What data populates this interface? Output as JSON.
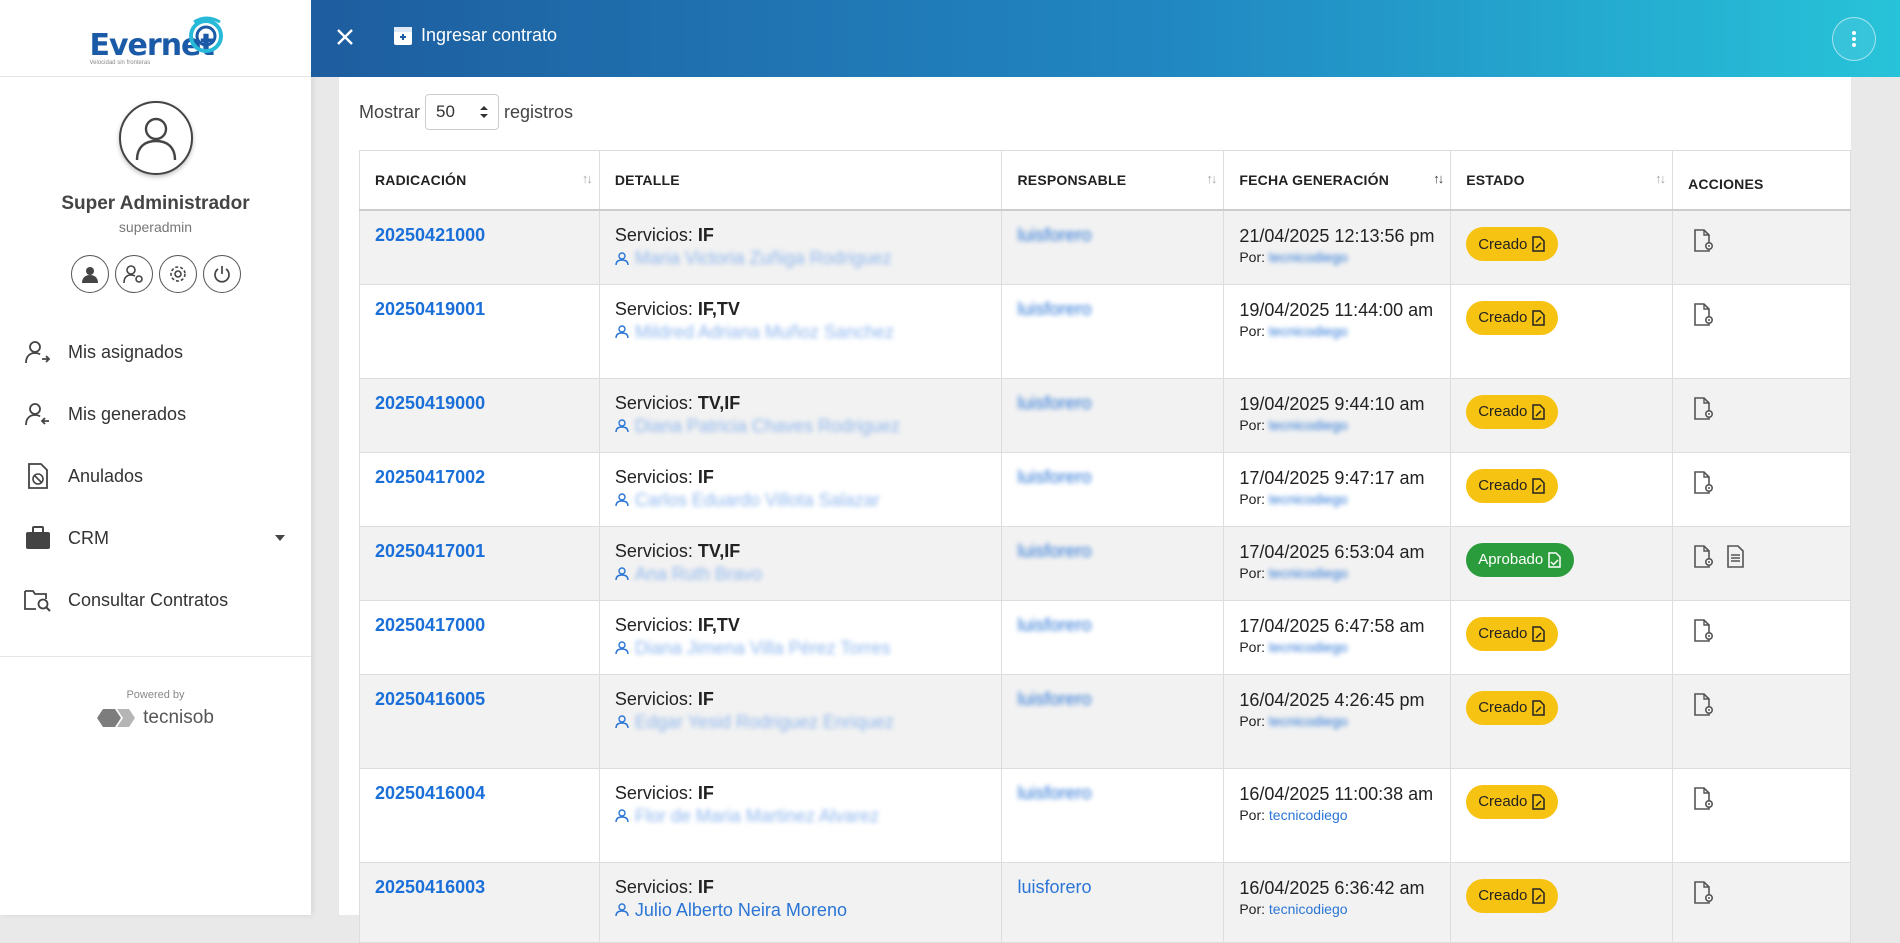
{
  "sidebar": {
    "logo_text": "Evernet",
    "logo_tagline": "Velocidad sin fronteras",
    "user": {
      "name": "Super Administrador",
      "login": "superadmin"
    },
    "profile_actions": [
      "profile-icon",
      "user-settings-icon",
      "gear-icon",
      "power-icon"
    ],
    "menu": [
      {
        "label": "Mis asignados",
        "icon": "user-assigned-icon"
      },
      {
        "label": "Mis generados",
        "icon": "user-generated-icon"
      },
      {
        "label": "Anulados",
        "icon": "cancelled-document-icon"
      },
      {
        "label": "CRM",
        "icon": "briefcase-icon",
        "has_caret": true
      },
      {
        "label": "Consultar Contratos",
        "icon": "search-folder-icon"
      }
    ],
    "powered": {
      "label": "Powered by",
      "name_a": "tecni",
      "name_b": "sob"
    }
  },
  "topbar": {
    "title": "Ingresar contrato"
  },
  "table_controls": {
    "show_label": "Mostrar",
    "page_size": "50",
    "records_label": "registros"
  },
  "table": {
    "columns": [
      "RADICACIÓN",
      "DETALLE",
      "RESPONSABLE",
      "FECHA GENERACIÓN",
      "ESTADO",
      "ACCIONES"
    ],
    "services_label": "Servicios: ",
    "by_label": "Por: ",
    "rows": [
      {
        "radicacion": "20250421000",
        "servicios": "IF",
        "cliente": "Maria Victoria Zuñiga Rodriguez",
        "responsable": "luisforero",
        "fecha": "21/04/2025 12:13:56 pm",
        "por": "tecnicodiego",
        "estado": "Creado",
        "acciones": 1
      },
      {
        "radicacion": "20250419001",
        "servicios": "IF,TV",
        "cliente": "Mildred Adriana Muñoz Sanchez",
        "responsable": "luisforero",
        "fecha": "19/04/2025 11:44:00 am",
        "por": "tecnicodiego",
        "estado": "Creado",
        "acciones": 1
      },
      {
        "radicacion": "20250419000",
        "servicios": "TV,IF",
        "cliente": "Diana Patricia Chaves Rodriguez",
        "responsable": "luisforero",
        "fecha": "19/04/2025 9:44:10 am",
        "por": "tecnicodiego",
        "estado": "Creado",
        "acciones": 1
      },
      {
        "radicacion": "20250417002",
        "servicios": "IF",
        "cliente": "Carlos Eduardo Villota Salazar",
        "responsable": "luisforero",
        "fecha": "17/04/2025 9:47:17 am",
        "por": "tecnicodiego",
        "estado": "Creado",
        "acciones": 1
      },
      {
        "radicacion": "20250417001",
        "servicios": "TV,IF",
        "cliente": "Ana Ruth Bravo",
        "responsable": "luisforero",
        "fecha": "17/04/2025 6:53:04 am",
        "por": "tecnicodiego",
        "estado": "Aprobado",
        "acciones": 2
      },
      {
        "radicacion": "20250417000",
        "servicios": "IF,TV",
        "cliente": "Diana Jimena Villa Pérez Torres",
        "responsable": "luisforero",
        "fecha": "17/04/2025 6:47:58 am",
        "por": "tecnicodiego",
        "estado": "Creado",
        "acciones": 1
      },
      {
        "radicacion": "20250416005",
        "servicios": "IF",
        "cliente": "Edgar Yesid Rodriguez Enriquez",
        "responsable": "luisforero",
        "fecha": "16/04/2025 4:26:45 pm",
        "por": "tecnicodiego",
        "estado": "Creado",
        "acciones": 1
      },
      {
        "radicacion": "20250416004",
        "servicios": "IF",
        "cliente": "Flor de Maria Martinez Alvarez",
        "responsable": "luisforero",
        "fecha": "16/04/2025 11:00:38 am",
        "por": "tecnicodiego",
        "estado": "Creado",
        "acciones": 1
      },
      {
        "radicacion": "20250416003",
        "servicios": "IF",
        "cliente": "Julio Alberto Neira Moreno",
        "responsable": "luisforero",
        "fecha": "16/04/2025 6:36:42 am",
        "por": "tecnicodiego",
        "estado": "Creado",
        "acciones": 1
      }
    ],
    "blurred_rows": [
      0,
      1,
      2,
      3,
      4,
      5,
      6,
      7
    ],
    "blurred_por_rows": [
      0,
      1,
      2,
      3,
      4,
      5,
      6
    ],
    "colors": {
      "link": "#1b6fd8",
      "creado": "#f7c313",
      "aprobado": "#2b9c3b"
    }
  }
}
